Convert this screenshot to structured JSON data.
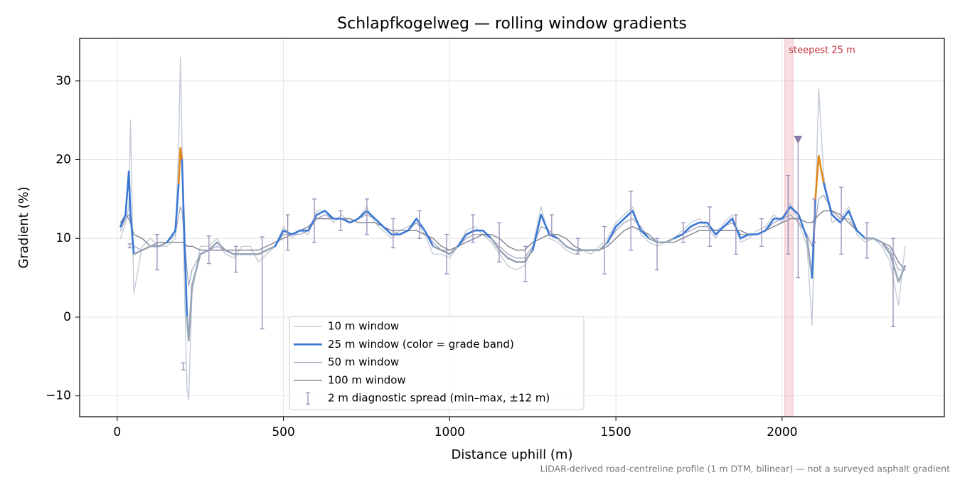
{
  "chart_data": {
    "type": "line",
    "title": "Schlapfkogelweg — rolling window gradients",
    "xlabel": "Distance uphill (m)",
    "ylabel": "Gradient (%)",
    "footnote": "LiDAR-derived road-centreline profile (1 m DTM, bilinear) — not a surveyed asphalt gradient",
    "xlim": [
      -113,
      2488
    ],
    "ylim": [
      -12.65,
      35.4
    ],
    "xticks": [
      0,
      500,
      1000,
      1500,
      2000
    ],
    "yticks": [
      {
        "value": -10,
        "label": "−10"
      },
      0,
      10,
      20,
      30
    ],
    "grid": true,
    "legend": "lower center",
    "x": [
      10,
      25,
      35,
      40,
      50,
      75,
      100,
      125,
      150,
      175,
      185,
      190,
      195,
      200,
      210,
      215,
      225,
      250,
      275,
      300,
      325,
      350,
      375,
      400,
      425,
      450,
      475,
      500,
      525,
      550,
      575,
      600,
      625,
      650,
      675,
      700,
      725,
      750,
      775,
      800,
      825,
      850,
      875,
      900,
      925,
      950,
      975,
      1000,
      1025,
      1050,
      1075,
      1100,
      1125,
      1150,
      1175,
      1200,
      1225,
      1250,
      1275,
      1300,
      1325,
      1350,
      1375,
      1400,
      1425,
      1450,
      1475,
      1500,
      1525,
      1550,
      1575,
      1600,
      1625,
      1650,
      1675,
      1700,
      1725,
      1750,
      1775,
      1800,
      1825,
      1850,
      1875,
      1900,
      1925,
      1950,
      1975,
      2000,
      2025,
      2050,
      2075,
      2090,
      2100,
      2110,
      2125,
      2150,
      2175,
      2200,
      2225,
      2250,
      2275,
      2300,
      2325,
      2350,
      2370
    ],
    "series": [
      {
        "name": "10 m window",
        "color": "#c3cbd6",
        "width": 1.4,
        "values": [
          10,
          12,
          14,
          25,
          3,
          9,
          10,
          9,
          9,
          10,
          22,
          33,
          22,
          8,
          -9,
          -10.5,
          3,
          9,
          9,
          10,
          8,
          7.5,
          9,
          9,
          7,
          8,
          9,
          11.5,
          10,
          11,
          10.5,
          13.5,
          13.5,
          12,
          13,
          12,
          12.5,
          14,
          12,
          11,
          10,
          11,
          11.5,
          12,
          10.5,
          8,
          8,
          7.5,
          9,
          11,
          11.5,
          10.5,
          9.5,
          8,
          6.5,
          6,
          6.5,
          9,
          14,
          10,
          9.5,
          8.5,
          8,
          8.5,
          8,
          9,
          10,
          12,
          13,
          14,
          10.5,
          9.5,
          9,
          9.5,
          10,
          11,
          12,
          12.5,
          11.5,
          10,
          12,
          13,
          9.5,
          10,
          11,
          11.5,
          13,
          12,
          14.5,
          12,
          9,
          -1,
          14,
          29,
          18,
          12,
          12.5,
          14,
          10.5,
          9.5,
          10,
          9,
          7,
          1.5,
          9
        ]
      },
      {
        "name": "25 m window (color = grade band)",
        "color": "#3a78d4",
        "width": 2.6,
        "band_edges": [
          10,
          20
        ],
        "band_colors": [
          "#97a6b7",
          "#3a78d4",
          "#e0891a"
        ],
        "values": [
          11.5,
          13,
          18.5,
          13,
          8,
          8.5,
          9,
          9,
          9.5,
          11,
          17,
          21.5,
          20,
          13,
          0,
          -3,
          4,
          8,
          8.5,
          9.5,
          8.5,
          8,
          8,
          8,
          8,
          8.5,
          9,
          11,
          10.5,
          11,
          11,
          13,
          13.5,
          12.5,
          12.5,
          12,
          12.5,
          13.5,
          12.5,
          11.5,
          10.5,
          10.5,
          11,
          12.5,
          11,
          9,
          8.5,
          8,
          9,
          10.5,
          11,
          11,
          10,
          8.5,
          7.5,
          7,
          7,
          8.5,
          13,
          10.5,
          10,
          9,
          8.5,
          8.5,
          8.5,
          8.5,
          9.5,
          11.5,
          12.5,
          13.5,
          11,
          10,
          9.5,
          9.5,
          10,
          10.5,
          11.5,
          12,
          12,
          10.5,
          11.5,
          12.5,
          10,
          10.5,
          10.5,
          11,
          12.5,
          12.5,
          14,
          13,
          10,
          5,
          15,
          20.5,
          17,
          13,
          12,
          13.5,
          11,
          10,
          10,
          9.5,
          8,
          4.5,
          6.5
        ]
      },
      {
        "name": "50 m window",
        "color": "#a2a6bd",
        "width": 1.3,
        "values": [
          11,
          12.5,
          13,
          12.5,
          9,
          8.5,
          9,
          9,
          9.5,
          10.5,
          13,
          14,
          13.5,
          11,
          6,
          4,
          6,
          8,
          8.5,
          9,
          8.5,
          8,
          8,
          8,
          8,
          8.5,
          9,
          10.5,
          10.5,
          10.5,
          11,
          12.5,
          13,
          12.5,
          12.5,
          12,
          12.5,
          13,
          12.5,
          11.5,
          11,
          10.5,
          11,
          12,
          11,
          9.5,
          8.5,
          8.5,
          9,
          10,
          10.5,
          10.5,
          10,
          9,
          8,
          7.5,
          7.5,
          9,
          11.5,
          11,
          10,
          9,
          8.5,
          8.5,
          8.5,
          8.5,
          9.5,
          11,
          12,
          12.5,
          11.5,
          10,
          9.5,
          9.5,
          10,
          10.5,
          11,
          11.5,
          11.5,
          11,
          11.5,
          12,
          10.5,
          10.5,
          10.5,
          11,
          12,
          12.5,
          13,
          12,
          10.5,
          9,
          12,
          15,
          15.5,
          13.5,
          12.5,
          12.5,
          11,
          10,
          10,
          9.5,
          8.5,
          6,
          6
        ]
      },
      {
        "name": "100 m window",
        "color": "#7c8290",
        "width": 1.4,
        "values": [
          12,
          13,
          12.5,
          12,
          10.5,
          10,
          9,
          9.5,
          9.5,
          9.5,
          9.5,
          9.5,
          9.5,
          9.5,
          9,
          9,
          9,
          8.5,
          8.5,
          8.5,
          8.5,
          8.5,
          8.5,
          8.5,
          8.5,
          9,
          9.5,
          10,
          10.5,
          11,
          11.5,
          12.5,
          12.5,
          12.5,
          12.5,
          12.5,
          12,
          12,
          12,
          11.5,
          11,
          11,
          11,
          11,
          10.5,
          10,
          9,
          8.5,
          9,
          9.5,
          10,
          10.5,
          10.5,
          10,
          9,
          8.5,
          8.5,
          9.5,
          10,
          10.5,
          10.5,
          10,
          9,
          8.5,
          8.5,
          8.5,
          9,
          10,
          11,
          11.5,
          11,
          10.5,
          9.5,
          9.5,
          9.5,
          10,
          10.5,
          11,
          11,
          11,
          11,
          11,
          11,
          10.5,
          10.5,
          11,
          11.5,
          12,
          12.5,
          12.5,
          12,
          12,
          12.5,
          13,
          13.5,
          13.5,
          13,
          12,
          11,
          10,
          10,
          9.5,
          9,
          7,
          6
        ]
      }
    ],
    "errorbars": {
      "name": "2 m diagnostic spread (min–max, ±12 m)",
      "color": "#9a8cb8",
      "x": [
        38,
        120,
        199,
        276,
        357,
        436,
        513,
        593,
        672,
        751,
        830,
        909,
        991,
        1070,
        1149,
        1228,
        1307,
        1386,
        1466,
        1545,
        1624,
        1703,
        1782,
        1861,
        1938,
        2018,
        2048,
        2097,
        2178,
        2255,
        2334
      ],
      "low": [
        8.8,
        6,
        -6.7,
        6.8,
        5.7,
        -1.5,
        8.5,
        9.5,
        11,
        10.5,
        8.8,
        10,
        5.5,
        9.5,
        7,
        4.5,
        10.5,
        8,
        5.5,
        8.5,
        6,
        9.5,
        9,
        8,
        9,
        8,
        5,
        9.5,
        8,
        7.5,
        -1.2
      ],
      "high": [
        9.3,
        10.5,
        -5.8,
        10.3,
        9,
        10.2,
        13,
        15,
        13.5,
        15,
        12.5,
        13.5,
        10.5,
        13,
        12,
        9,
        13,
        10,
        11.5,
        16,
        10,
        12,
        14,
        13,
        12.5,
        18,
        22.5,
        15,
        16.5,
        12,
        10
      ]
    },
    "marker": {
      "x": 2048,
      "y": 22.5,
      "color": "#8a7aa8"
    },
    "highlight": {
      "label": "steepest 25 m",
      "x": [
        2008,
        2033
      ],
      "color": "#e8a0a8",
      "text_color": "#c0303a"
    }
  }
}
